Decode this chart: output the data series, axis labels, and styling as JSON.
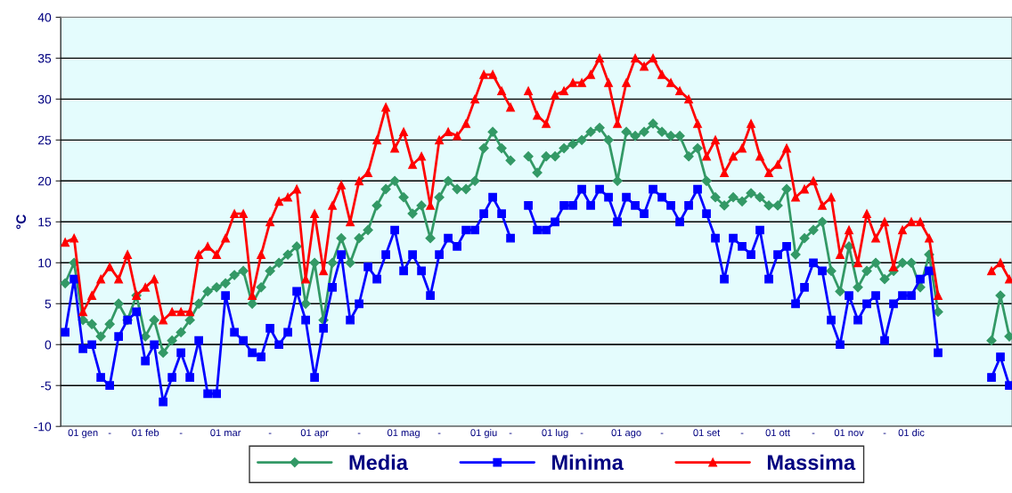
{
  "chart_data": {
    "type": "line",
    "ylabel": "°C",
    "categories": [
      null,
      null,
      "01 gen",
      null,
      null,
      "-",
      null,
      null,
      null,
      "01 feb",
      null,
      null,
      null,
      "-",
      null,
      null,
      null,
      null,
      "01 mar",
      null,
      null,
      null,
      null,
      "-",
      null,
      null,
      null,
      null,
      "01 apr",
      null,
      null,
      null,
      null,
      "-",
      null,
      null,
      null,
      null,
      "01 mag",
      null,
      null,
      null,
      "-",
      null,
      null,
      null,
      null,
      "01 giu",
      null,
      null,
      "-",
      null,
      null,
      null,
      null,
      "01 lug",
      null,
      null,
      "-",
      null,
      null,
      null,
      null,
      "01 ago",
      null,
      null,
      null,
      "-",
      null,
      null,
      null,
      null,
      "01 set",
      null,
      null,
      null,
      "-",
      null,
      null,
      null,
      "01 ott",
      null,
      null,
      null,
      "-",
      null,
      null,
      null,
      "01 nov",
      null,
      null,
      null,
      "-",
      null,
      null,
      "01 dic",
      null,
      null,
      null,
      null,
      null,
      null,
      null,
      null,
      null,
      null,
      null
    ],
    "series": [
      {
        "name": "Media",
        "color": "#339966",
        "marker": "diamond",
        "values": [
          7.5,
          10,
          3,
          2.5,
          1,
          2.5,
          5,
          3,
          6,
          1,
          3,
          -1,
          0.5,
          1.5,
          3,
          5,
          6.5,
          7,
          7.5,
          8.5,
          9,
          5,
          7,
          9,
          10,
          11,
          12,
          5,
          10,
          3,
          10,
          13,
          10,
          13,
          14,
          17,
          19,
          20,
          18,
          16,
          17,
          13,
          18,
          20,
          19,
          19,
          20,
          24,
          26,
          24,
          22.5,
          null,
          23,
          21,
          23,
          23,
          24,
          24.5,
          25,
          26,
          26.5,
          25,
          20,
          26,
          25.5,
          26,
          27,
          26,
          25.5,
          25.5,
          23,
          24,
          20,
          18,
          17,
          18,
          17.5,
          18.5,
          18,
          17,
          17,
          19,
          11,
          13,
          14,
          15,
          9,
          6.5,
          12,
          7,
          9,
          10,
          8,
          9,
          10,
          10,
          7,
          11,
          4,
          null,
          null,
          null,
          null,
          null,
          0.5,
          6,
          1
        ]
      },
      {
        "name": "Minima",
        "color": "#0000ff",
        "marker": "square",
        "values": [
          1.5,
          8,
          -0.5,
          0,
          -4,
          -5,
          1,
          3,
          4,
          -2,
          0,
          -7,
          -4,
          -1,
          -4,
          0.5,
          -6,
          -6,
          6,
          1.5,
          0.5,
          -1,
          -1.5,
          2,
          0,
          1.5,
          6.5,
          3,
          -4,
          2,
          7,
          11,
          3,
          5,
          9.5,
          8,
          11,
          14,
          9,
          11,
          9,
          6,
          11,
          13,
          12,
          14,
          14,
          16,
          18,
          16,
          13,
          null,
          17,
          14,
          14,
          15,
          17,
          17,
          19,
          17,
          19,
          18,
          15,
          18,
          17,
          16,
          19,
          18,
          17,
          15,
          17,
          19,
          16,
          13,
          8,
          13,
          12,
          11,
          14,
          8,
          11,
          12,
          5,
          7,
          10,
          9,
          3,
          0,
          6,
          3,
          5,
          6,
          0.5,
          5,
          6,
          6,
          8,
          9,
          -1,
          null,
          null,
          null,
          null,
          null,
          -4,
          -1.5,
          -5
        ]
      },
      {
        "name": "Massima",
        "color": "#ff0000",
        "marker": "triangle",
        "values": [
          12.5,
          13,
          4,
          6,
          8,
          9.5,
          8,
          11,
          6,
          7,
          8,
          3,
          4,
          4,
          4,
          11,
          12,
          11,
          13,
          16,
          16,
          6,
          11,
          15,
          17.5,
          18,
          19,
          8,
          16,
          9,
          17,
          19.5,
          15,
          20,
          21,
          25,
          29,
          24,
          26,
          22,
          23,
          17,
          25,
          26,
          25.5,
          27,
          30,
          33,
          33,
          31,
          29,
          null,
          31,
          28,
          27,
          30.5,
          31,
          32,
          32,
          33,
          35,
          32,
          27,
          32,
          35,
          34,
          35,
          33,
          32,
          31,
          30,
          27,
          23,
          25,
          21,
          23,
          24,
          27,
          23,
          21,
          22,
          24,
          18,
          19,
          20,
          17,
          18,
          11,
          14,
          10,
          16,
          13,
          15,
          9.5,
          14,
          15,
          15,
          13,
          6,
          null,
          null,
          null,
          null,
          null,
          9,
          10,
          8
        ]
      }
    ],
    "ylim": [
      -10,
      40
    ],
    "yticks": [
      -10,
      -5,
      0,
      5,
      10,
      15,
      20,
      25,
      30,
      35,
      40
    ],
    "grid": "y",
    "legend": "bottom",
    "line_style": "solid"
  }
}
